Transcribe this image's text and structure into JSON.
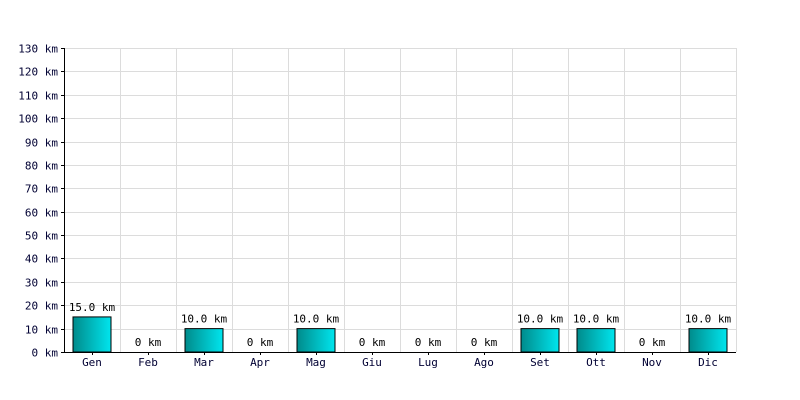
{
  "chart_data": {
    "type": "bar",
    "title": "",
    "xlabel": "",
    "ylabel": "",
    "unit": "km",
    "categories": [
      "Gen",
      "Feb",
      "Mar",
      "Apr",
      "Mag",
      "Giu",
      "Lug",
      "Ago",
      "Set",
      "Ott",
      "Nov",
      "Dic"
    ],
    "values": [
      15.0,
      0,
      10.0,
      0,
      10.0,
      0,
      0,
      0,
      10.0,
      10.0,
      0,
      10.0
    ],
    "value_labels": [
      "15.0 km",
      "0 km",
      "10.0 km",
      "0 km",
      "10.0 km",
      "0 km",
      "0 km",
      "0 km",
      "10.0 km",
      "10.0 km",
      "0 km",
      "10.0 km"
    ],
    "ylim": [
      0,
      130
    ],
    "y_ticks": [
      0,
      10,
      20,
      30,
      40,
      50,
      60,
      70,
      80,
      90,
      100,
      110,
      120,
      130
    ],
    "y_tick_labels": [
      "0 km",
      "10 km",
      "20 km",
      "30 km",
      "40 km",
      "50 km",
      "60 km",
      "70 km",
      "80 km",
      "90 km",
      "100 km",
      "110 km",
      "120 km",
      "130 km"
    ],
    "grid": true,
    "legend": "none",
    "colors": {
      "bar_dark": "#008b8b",
      "bar_light": "#00e5ee",
      "grid": "#dcdcdc",
      "axis": "#000000",
      "tick_text": "#000033"
    }
  }
}
